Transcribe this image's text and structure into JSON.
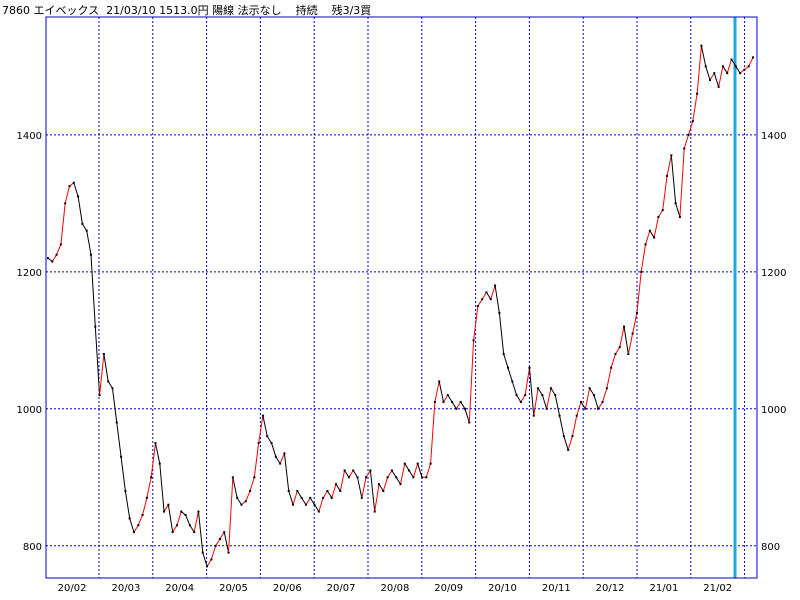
{
  "header": {
    "code": "7860",
    "name": "エイベックス",
    "date": "21/03/10",
    "price": "1513.0円",
    "candle": "陽線",
    "method": "法示なし",
    "status": "持続",
    "position": "残3/3買"
  },
  "colors": {
    "up": "#ff0000",
    "down": "#000000",
    "grid": "#0000cc",
    "marker": "#1ea7e0",
    "frame": "#0000cc"
  },
  "chart_data": {
    "type": "line",
    "title": "",
    "xlabel": "",
    "ylabel": "",
    "ylim": [
      753,
      1572
    ],
    "yticks": [
      800,
      1000,
      1200,
      1400
    ],
    "xticks": [
      "20/02",
      "20/03",
      "20/04",
      "20/05",
      "20/06",
      "20/07",
      "20/08",
      "20/09",
      "20/10",
      "20/11",
      "20/12",
      "21/01",
      "21/02"
    ],
    "grid": true,
    "marker_position": "last-week-of-21/02",
    "series": [
      {
        "values": [
          1220,
          1215,
          1225,
          1240,
          1300,
          1325,
          1330,
          1310,
          1270,
          1260,
          1225,
          1120,
          1020,
          1080,
          1040,
          1030,
          980,
          930,
          880,
          840,
          820,
          830,
          845,
          870,
          900,
          950,
          920,
          850,
          860,
          820,
          830,
          850,
          845,
          830,
          820,
          850,
          790,
          770,
          780,
          800,
          810,
          820,
          790,
          900,
          870,
          860,
          865,
          880,
          900,
          950,
          990,
          960,
          950,
          930,
          920,
          935,
          880,
          860,
          880,
          870,
          860,
          870,
          860,
          850,
          870,
          880,
          870,
          890,
          880,
          910,
          900,
          910,
          900,
          870,
          900,
          910,
          850,
          890,
          880,
          900,
          910,
          900,
          890,
          920,
          910,
          900,
          920,
          900,
          900,
          920,
          1010,
          1040,
          1010,
          1020,
          1010,
          1000,
          1010,
          1000,
          980,
          1100,
          1150,
          1160,
          1170,
          1160,
          1180,
          1140,
          1080,
          1060,
          1040,
          1020,
          1010,
          1020,
          1060,
          990,
          1030,
          1020,
          1000,
          1030,
          1020,
          990,
          960,
          940,
          960,
          990,
          1010,
          1000,
          1030,
          1020,
          1000,
          1010,
          1030,
          1060,
          1080,
          1090,
          1120,
          1080,
          1110,
          1140,
          1200,
          1240,
          1260,
          1250,
          1280,
          1290,
          1340,
          1370,
          1300,
          1280,
          1380,
          1400,
          1420,
          1460,
          1530,
          1500,
          1480,
          1490,
          1470,
          1500,
          1490,
          1510,
          1500,
          1490,
          1495,
          1500,
          1513
        ]
      }
    ]
  }
}
